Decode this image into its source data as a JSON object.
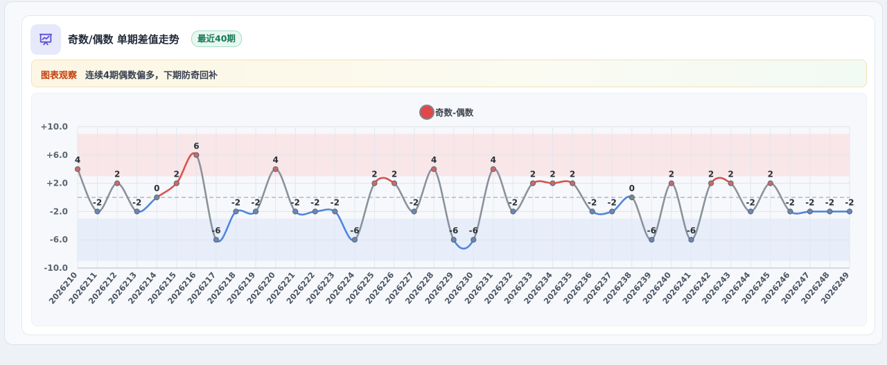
{
  "header": {
    "icon": "chart-presentation-icon",
    "title": "奇数/偶数 单期差值走势",
    "badge": "最近40期"
  },
  "note": {
    "label": "图表观察",
    "text": "连续4期偶数偏多，下期防奇回补"
  },
  "colors": {
    "positive": "#d9534f",
    "negative": "#4f86d9",
    "neutral": "#8a929c",
    "accent": "#5b4fd6",
    "legend_dot": "#e04848"
  },
  "chart_data": {
    "type": "line",
    "smooth": true,
    "categories": [
      "2026210",
      "2026211",
      "2026212",
      "2026213",
      "2026214",
      "2026215",
      "2026216",
      "2026217",
      "2026218",
      "2026219",
      "2026220",
      "2026221",
      "2026222",
      "2026223",
      "2026224",
      "2026225",
      "2026226",
      "2026227",
      "2026228",
      "2026229",
      "2026230",
      "2026231",
      "2026232",
      "2026233",
      "2026234",
      "2026235",
      "2026236",
      "2026237",
      "2026238",
      "2026239",
      "2026240",
      "2026241",
      "2026242",
      "2026243",
      "2026244",
      "2026245",
      "2026246",
      "2026247",
      "2026248",
      "2026249"
    ],
    "series": [
      {
        "name": "奇数-偶数",
        "values": [
          4,
          -2,
          2,
          -2,
          0,
          2,
          6,
          -6,
          -2,
          -2,
          4,
          -2,
          -2,
          -2,
          -6,
          2,
          2,
          -2,
          4,
          -6,
          -6,
          4,
          -2,
          2,
          2,
          2,
          -2,
          -2,
          0,
          -6,
          2,
          -6,
          2,
          2,
          -2,
          2,
          -2,
          -2,
          -2,
          -2
        ]
      }
    ],
    "ylim": [
      -10,
      10
    ],
    "yticks": [
      -10,
      -6,
      -2,
      2,
      6,
      10
    ],
    "ytick_labels": [
      "-10.0",
      "-6.0",
      "-2.0",
      "+2.0",
      "+6.0",
      "+10.0"
    ],
    "reference_line": 0,
    "bands": [
      {
        "from": 3,
        "to": 9,
        "tone": "positive"
      },
      {
        "from": -9,
        "to": -3,
        "tone": "negative"
      }
    ],
    "legend_position": "top-center",
    "grid": true,
    "data_labels": true
  }
}
